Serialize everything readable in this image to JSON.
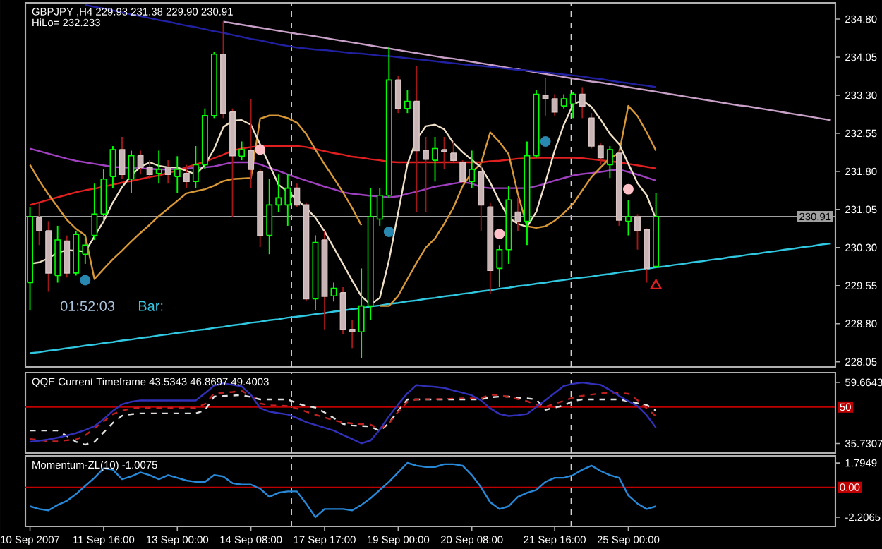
{
  "chart_data": [
    {
      "type": "candlestick",
      "title": "GBPJPY ,H4  229.93 231.38 229.90 230.91",
      "annotations": [
        "HiLo= 232.233",
        "01:52:03",
        "Bar:"
      ],
      "categories": [
        null,
        null,
        null,
        null,
        null,
        null,
        null,
        null,
        null,
        null,
        null,
        null,
        null,
        null,
        null,
        null,
        null,
        null,
        null,
        null,
        null,
        null,
        null,
        null,
        null,
        null,
        null,
        null,
        null,
        null,
        null,
        null,
        null,
        null,
        null,
        null,
        null,
        null,
        null,
        null,
        null,
        null,
        null,
        null,
        null,
        null,
        null,
        null,
        null,
        null,
        null,
        null,
        null,
        null,
        null,
        null,
        null,
        null,
        null,
        null,
        null,
        null,
        null,
        null,
        null,
        null,
        null,
        null,
        null,
        null,
        null,
        null,
        null,
        null,
        null,
        null,
        null,
        null,
        null,
        null,
        null,
        null,
        null,
        null,
        null,
        null,
        null,
        null
      ],
      "ohlc": [
        [
          229.61,
          231.1,
          229.06,
          230.91
        ],
        [
          230.89,
          231.19,
          230.35,
          230.63
        ],
        [
          230.63,
          230.82,
          229.43,
          229.8
        ],
        [
          229.75,
          230.73,
          229.61,
          230.45
        ],
        [
          230.43,
          230.54,
          229.71,
          229.8
        ],
        [
          229.8,
          230.63,
          229.75,
          230.56
        ],
        [
          230.17,
          230.54,
          229.98,
          230.35
        ],
        [
          230.54,
          231.56,
          230.45,
          230.96
        ],
        [
          230.96,
          231.84,
          230.82,
          231.65
        ],
        [
          231.7,
          232.3,
          231.47,
          232.23
        ],
        [
          232.23,
          232.48,
          231.65,
          231.74
        ],
        [
          231.65,
          232.21,
          231.37,
          232.11
        ],
        [
          232.11,
          232.21,
          231.74,
          231.88
        ],
        [
          231.88,
          232.02,
          231.65,
          231.74
        ],
        [
          231.76,
          232.21,
          231.56,
          231.84
        ],
        [
          231.88,
          232.02,
          231.56,
          231.74
        ],
        [
          231.7,
          232.1,
          231.37,
          231.84
        ],
        [
          231.76,
          231.93,
          231.47,
          231.6
        ],
        [
          231.6,
          232.3,
          231.47,
          231.93
        ],
        [
          231.93,
          233.04,
          231.84,
          232.9
        ],
        [
          232.9,
          234.15,
          232.85,
          234.11
        ],
        [
          234.11,
          234.75,
          232.85,
          232.95
        ],
        [
          232.97,
          233.04,
          230.91,
          232.11
        ],
        [
          232.1,
          232.39,
          232.02,
          232.23
        ],
        [
          232.21,
          233.23,
          231.47,
          231.84
        ],
        [
          231.79,
          231.84,
          230.31,
          230.54
        ],
        [
          230.54,
          231.65,
          230.17,
          231.14
        ],
        [
          231.14,
          231.74,
          231.0,
          231.28
        ],
        [
          231.14,
          231.74,
          230.73,
          231.47
        ],
        [
          231.47,
          231.56,
          231.1,
          231.14
        ],
        [
          231.14,
          231.19,
          229.24,
          229.29
        ],
        [
          229.29,
          230.54,
          229.06,
          230.4
        ],
        [
          230.45,
          230.63,
          228.69,
          229.34
        ],
        [
          229.35,
          229.61,
          229.24,
          229.5
        ],
        [
          229.41,
          229.52,
          228.6,
          228.69
        ],
        [
          228.69,
          228.87,
          228.32,
          228.64
        ],
        [
          228.64,
          229.89,
          228.13,
          229.15
        ],
        [
          229.15,
          231.47,
          228.87,
          230.91
        ],
        [
          230.86,
          231.47,
          230.73,
          231.33
        ],
        [
          231.33,
          234.24,
          231.28,
          233.6
        ],
        [
          233.6,
          233.69,
          232.95,
          233.04
        ],
        [
          233.04,
          233.41,
          232.95,
          233.18
        ],
        [
          233.18,
          233.87,
          231.0,
          232.21
        ],
        [
          232.21,
          232.48,
          231.0,
          232.04
        ],
        [
          232.02,
          232.48,
          231.6,
          232.25
        ],
        [
          232.23,
          232.48,
          231.84,
          232.19
        ],
        [
          232.16,
          232.39,
          231.98,
          232.02
        ],
        [
          231.98,
          232.02,
          231.56,
          231.6
        ],
        [
          231.6,
          232.21,
          231.47,
          231.84
        ],
        [
          231.79,
          231.98,
          230.63,
          231.14
        ],
        [
          231.1,
          231.19,
          229.38,
          229.85
        ],
        [
          229.89,
          230.35,
          229.52,
          230.26
        ],
        [
          230.26,
          231.51,
          229.98,
          231.24
        ],
        [
          231.0,
          231.28,
          230.63,
          230.82
        ],
        [
          230.82,
          232.39,
          230.35,
          232.11
        ],
        [
          232.11,
          233.41,
          232.07,
          233.32
        ],
        [
          233.3,
          233.64,
          232.9,
          233.23
        ],
        [
          233.23,
          233.32,
          232.9,
          232.97
        ],
        [
          233.09,
          233.32,
          233.04,
          233.23
        ],
        [
          233.13,
          233.36,
          232.85,
          233.32
        ],
        [
          233.32,
          233.46,
          232.85,
          233.09
        ],
        [
          232.85,
          232.95,
          232.25,
          232.3
        ],
        [
          232.3,
          232.35,
          231.93,
          232.07
        ],
        [
          231.93,
          232.3,
          231.67,
          232.23
        ],
        [
          232.16,
          232.21,
          230.73,
          230.84
        ],
        [
          230.82,
          231.24,
          230.54,
          230.91
        ],
        [
          230.91,
          230.96,
          230.26,
          230.63
        ],
        [
          230.65,
          230.68,
          229.61,
          229.89
        ],
        [
          229.93,
          231.38,
          229.9,
          230.91
        ],
        null,
        null,
        null,
        null,
        null,
        null,
        null,
        null,
        null,
        null,
        null,
        null,
        null,
        null,
        null,
        null,
        null,
        null,
        null
      ],
      "series": [
        {
          "type": "line",
          "color": "#30c8e0",
          "values": [
            228.22,
            228.24,
            228.27,
            228.29,
            228.32,
            228.34,
            228.37,
            228.39,
            228.42,
            228.44,
            228.47,
            228.49,
            228.52,
            228.54,
            228.57,
            228.59,
            228.62,
            228.64,
            228.67,
            228.69,
            228.72,
            228.74,
            228.77,
            228.79,
            228.82,
            228.84,
            228.87,
            228.89,
            228.92,
            228.94,
            228.96,
            228.99,
            229.01,
            229.04,
            229.06,
            229.09,
            229.11,
            229.14,
            229.16,
            229.19,
            229.21,
            229.24,
            229.26,
            229.29,
            229.31,
            229.34,
            229.36,
            229.39,
            229.41,
            229.44,
            229.46,
            229.49,
            229.51,
            229.54,
            229.56,
            229.59,
            229.61,
            229.64,
            229.66,
            229.69,
            229.71,
            229.73,
            229.76,
            229.78,
            229.81,
            229.83,
            229.86,
            229.88,
            229.91,
            229.93,
            229.96,
            229.98,
            230.01,
            230.03,
            230.06,
            230.08,
            230.11,
            230.13,
            230.16,
            230.18,
            230.21,
            230.23,
            230.26,
            230.28,
            230.31,
            230.33,
            230.36,
            230.38
          ]
        },
        {
          "type": "line",
          "color": "#c8a0c8",
          "values": [
            null,
            null,
            null,
            null,
            null,
            null,
            null,
            null,
            null,
            null,
            null,
            null,
            null,
            null,
            null,
            null,
            null,
            null,
            null,
            null,
            null,
            234.75,
            234.72,
            234.69,
            234.66,
            234.63,
            234.6,
            234.57,
            234.54,
            234.51,
            234.49,
            234.46,
            234.43,
            234.4,
            234.37,
            234.34,
            234.31,
            234.28,
            234.25,
            234.22,
            234.19,
            234.16,
            234.13,
            234.1,
            234.07,
            234.04,
            234.02,
            233.99,
            233.96,
            233.93,
            233.9,
            233.87,
            233.84,
            233.81,
            233.78,
            233.75,
            233.72,
            233.69,
            233.66,
            233.63,
            233.6,
            233.57,
            233.55,
            233.52,
            233.49,
            233.46,
            233.43,
            233.4,
            233.37,
            233.34,
            233.31,
            233.28,
            233.25,
            233.22,
            233.19,
            233.16,
            233.13,
            233.1,
            233.08,
            233.05,
            233.02,
            232.99,
            232.96,
            232.93,
            232.9,
            232.87,
            232.84,
            232.81
          ]
        },
        {
          "type": "line",
          "color": "#2020a0",
          "values": [
            null,
            null,
            null,
            null,
            null,
            null,
            235.08,
            235.04,
            235.01,
            234.97,
            234.93,
            234.89,
            234.86,
            234.82,
            234.78,
            234.75,
            234.71,
            234.67,
            234.64,
            234.6,
            234.56,
            234.53,
            234.49,
            234.45,
            234.41,
            234.38,
            234.34,
            234.3,
            234.27,
            234.24,
            234.22,
            234.2,
            234.19,
            234.17,
            234.15,
            234.13,
            234.12,
            234.1,
            234.08,
            234.07,
            234.05,
            234.03,
            234.01,
            233.99,
            233.97,
            233.95,
            233.93,
            233.91,
            233.89,
            233.88,
            233.86,
            233.84,
            233.82,
            233.8,
            233.79,
            233.77,
            233.75,
            233.73,
            233.71,
            233.69,
            233.67,
            233.64,
            233.62,
            233.59,
            233.56,
            233.54,
            233.51,
            233.49,
            233.46,
            null,
            null,
            null,
            null,
            null,
            null,
            null,
            null,
            null,
            null,
            null,
            null,
            null,
            null,
            null,
            null,
            null,
            null,
            null
          ]
        },
        {
          "type": "line",
          "color": "#a040c0",
          "values": [
            232.25,
            232.2,
            232.15,
            232.1,
            232.05,
            232.01,
            231.98,
            231.95,
            231.92,
            231.89,
            231.88,
            231.87,
            231.86,
            231.85,
            231.84,
            231.84,
            231.85,
            231.86,
            231.87,
            231.88,
            231.9,
            231.94,
            231.98,
            231.98,
            231.98,
            231.94,
            231.87,
            231.81,
            231.74,
            231.68,
            231.62,
            231.56,
            231.5,
            231.45,
            231.39,
            231.36,
            231.34,
            231.32,
            231.31,
            231.29,
            231.31,
            231.36,
            231.4,
            231.45,
            231.5,
            231.53,
            231.56,
            231.59,
            231.56,
            231.49,
            231.47,
            231.47,
            231.47,
            231.47,
            231.47,
            231.51,
            231.56,
            231.62,
            231.67,
            231.72,
            231.75,
            231.77,
            231.79,
            231.82,
            231.84,
            231.79,
            231.74,
            231.68,
            231.62,
            null,
            null,
            null,
            null,
            null,
            null,
            null,
            null,
            null,
            null,
            null,
            null,
            null,
            null,
            null,
            null,
            null,
            null,
            null
          ]
        },
        {
          "type": "line",
          "color": "#e02020",
          "values": [
            231.14,
            231.19,
            231.24,
            231.29,
            231.34,
            231.39,
            231.43,
            231.46,
            231.5,
            231.54,
            231.58,
            231.61,
            231.65,
            231.69,
            231.72,
            231.77,
            231.82,
            231.88,
            231.94,
            231.99,
            232.06,
            232.13,
            232.21,
            232.25,
            232.28,
            232.3,
            232.3,
            232.3,
            232.3,
            232.3,
            232.28,
            232.24,
            232.2,
            232.16,
            232.13,
            232.09,
            232.07,
            232.04,
            232.02,
            231.99,
            231.98,
            231.98,
            231.98,
            231.98,
            231.98,
            231.98,
            231.98,
            231.98,
            231.98,
            231.98,
            232.0,
            232.01,
            232.03,
            232.05,
            232.06,
            232.07,
            232.07,
            232.07,
            232.07,
            232.07,
            232.06,
            232.04,
            232.02,
            232.0,
            231.98,
            231.95,
            231.92,
            231.89,
            231.86,
            null,
            null,
            null,
            null,
            null,
            null,
            null,
            null,
            null,
            null,
            null,
            null,
            null,
            null,
            null,
            null,
            null,
            null,
            null
          ]
        },
        {
          "type": "line",
          "color": "#d89838",
          "values": [
            231.93,
            231.62,
            231.35,
            231.1,
            230.85,
            230.67,
            230.54,
            229.68,
            229.88,
            230.07,
            230.24,
            230.42,
            230.59,
            230.75,
            230.92,
            231.07,
            231.22,
            231.37,
            231.41,
            231.45,
            231.52,
            231.61,
            231.65,
            231.66,
            231.67,
            232.84,
            232.9,
            232.9,
            232.85,
            232.76,
            232.54,
            232.23,
            231.94,
            231.67,
            231.39,
            231.08,
            230.74,
            null,
            229.15,
            229.15,
            229.35,
            229.68,
            230.0,
            230.3,
            230.48,
            230.77,
            231.09,
            231.51,
            231.78,
            231.96,
            232.57,
            232.38,
            232.14,
            231.36,
            230.72,
            230.69,
            230.72,
            230.83,
            230.98,
            231.16,
            231.43,
            231.69,
            231.88,
            232.06,
            232.16,
            233.09,
            232.89,
            232.57,
            232.21,
            null,
            null,
            null,
            null,
            null,
            null,
            null,
            null,
            null,
            null,
            null,
            null,
            null,
            null,
            null,
            null,
            null,
            null,
            null
          ]
        },
        {
          "type": "line",
          "color": "#f0e0c8",
          "values": [
            229.98,
            230.01,
            230.09,
            230.2,
            230.25,
            230.24,
            230.22,
            230.52,
            230.82,
            231.19,
            231.49,
            231.72,
            231.89,
            231.98,
            231.91,
            231.88,
            231.88,
            231.81,
            231.74,
            231.93,
            232.24,
            232.67,
            232.8,
            232.81,
            232.72,
            232.33,
            231.93,
            231.54,
            231.4,
            231.25,
            231.08,
            230.89,
            230.62,
            230.3,
            229.98,
            229.65,
            229.34,
            229.18,
            229.31,
            230.05,
            230.99,
            231.94,
            232.43,
            232.69,
            232.72,
            232.63,
            232.36,
            232.18,
            232.03,
            231.88,
            231.58,
            231.21,
            230.89,
            230.77,
            230.71,
            231.0,
            231.59,
            232.21,
            232.72,
            233.12,
            233.2,
            233.07,
            232.82,
            232.54,
            232.34,
            231.95,
            231.57,
            231.33,
            230.86,
            null,
            null,
            null,
            null,
            null,
            null,
            null,
            null,
            null,
            null,
            null,
            null,
            null,
            null,
            null,
            null,
            null,
            null,
            null
          ]
        },
        {
          "type": "scatter",
          "marker": "circle",
          "color": "#2888b0",
          "values": [
            null,
            null,
            null,
            null,
            null,
            null,
            229.66,
            null,
            null,
            null,
            null,
            null,
            null,
            null,
            null,
            null,
            null,
            null,
            null,
            null,
            null,
            null,
            null,
            null,
            null,
            null,
            null,
            null,
            null,
            null,
            null,
            null,
            null,
            null,
            null,
            null,
            null,
            null,
            null,
            230.61,
            null,
            null,
            null,
            null,
            null,
            null,
            null,
            null,
            null,
            null,
            null,
            null,
            null,
            null,
            null,
            null,
            232.39,
            null,
            null,
            null,
            null,
            null,
            null,
            null,
            null,
            null,
            null,
            null,
            null,
            null,
            null,
            null,
            null,
            null,
            null,
            null,
            null,
            null,
            null,
            null,
            null,
            null,
            null,
            null,
            null,
            null,
            null,
            null
          ]
        },
        {
          "type": "scatter",
          "marker": "circle",
          "color": "#ffc0c8",
          "values": [
            null,
            null,
            null,
            null,
            null,
            null,
            null,
            null,
            null,
            null,
            null,
            null,
            null,
            null,
            null,
            null,
            null,
            null,
            null,
            null,
            null,
            null,
            null,
            null,
            null,
            232.23,
            null,
            null,
            null,
            null,
            null,
            null,
            null,
            null,
            null,
            null,
            null,
            null,
            null,
            null,
            null,
            null,
            null,
            null,
            null,
            null,
            null,
            null,
            null,
            null,
            null,
            230.57,
            null,
            null,
            null,
            null,
            null,
            null,
            null,
            null,
            null,
            null,
            null,
            null,
            null,
            231.45,
            null,
            null,
            null,
            null,
            null,
            null,
            null,
            null,
            null,
            null,
            null,
            null,
            null,
            null,
            null,
            null,
            null,
            null,
            null,
            null,
            null,
            null
          ]
        },
        {
          "type": "scatter",
          "marker": "triangle",
          "color": "#e02020",
          "values": [
            null,
            null,
            null,
            null,
            null,
            null,
            null,
            null,
            null,
            null,
            null,
            null,
            null,
            null,
            null,
            null,
            null,
            null,
            null,
            null,
            null,
            null,
            null,
            null,
            null,
            null,
            null,
            null,
            null,
            null,
            null,
            null,
            null,
            null,
            null,
            null,
            null,
            null,
            null,
            null,
            null,
            null,
            null,
            null,
            null,
            null,
            null,
            null,
            null,
            null,
            null,
            null,
            null,
            null,
            null,
            null,
            null,
            null,
            null,
            null,
            null,
            null,
            null,
            null,
            null,
            null,
            null,
            null,
            229.55,
            null,
            null,
            null,
            null,
            null,
            null,
            null,
            null,
            null,
            null,
            null,
            null,
            null,
            null,
            null,
            null,
            null,
            null,
            null
          ]
        }
      ],
      "ylim": [
        227.95,
        235.12
      ],
      "yticks": [
        {
          "value": 228.05,
          "label": "228.05"
        },
        {
          "value": 228.8,
          "label": "228.80"
        },
        {
          "value": 229.55,
          "label": "229.55"
        },
        {
          "value": 230.3,
          "label": "230.30"
        },
        {
          "value": 231.05,
          "label": "231.05"
        },
        {
          "value": 231.8,
          "label": "231.80"
        },
        {
          "value": 232.55,
          "label": "232.55"
        },
        {
          "value": 233.3,
          "label": "233.30"
        },
        {
          "value": 234.05,
          "label": "234.05"
        },
        {
          "value": 234.8,
          "label": "234.80"
        }
      ],
      "ref_lines": [
        {
          "axis": "y",
          "value": 230.91,
          "label": "230.91",
          "color": "#a0a0a0"
        }
      ],
      "tick_labels": "y"
    },
    {
      "type": "line",
      "title": "QQE Current Timeframe 43.5343 46.8697 49.4003",
      "categories": [
        null,
        null,
        null,
        null,
        null,
        null,
        null,
        null,
        null,
        null,
        null,
        null,
        null,
        null,
        null,
        null,
        null,
        null,
        null,
        null,
        null,
        null,
        null,
        null,
        null,
        null,
        null,
        null,
        null,
        null,
        null,
        null,
        null,
        null,
        null,
        null,
        null,
        null,
        null,
        null,
        null,
        null,
        null,
        null,
        null,
        null,
        null,
        null,
        null,
        null,
        null,
        null,
        null,
        null,
        null,
        null,
        null,
        null,
        null,
        null,
        null,
        null,
        null,
        null,
        null,
        null,
        null,
        null,
        null,
        null,
        null,
        null,
        null,
        null,
        null,
        null,
        null,
        null,
        null,
        null,
        null,
        null,
        null,
        null,
        null,
        null,
        null,
        null
      ],
      "series": [
        {
          "color": "#e0e0e0",
          "line_style": "dashed",
          "values": [
            40.8,
            40.8,
            40.8,
            40.8,
            38.7,
            36.4,
            35.3,
            36.4,
            40.1,
            43.8,
            46.6,
            47.2,
            47.5,
            47.5,
            47.5,
            47.5,
            47.5,
            47.5,
            47.5,
            48.7,
            54.1,
            54.3,
            54.5,
            54.7,
            53.9,
            53.0,
            53.0,
            53.0,
            53.0,
            51.5,
            50.4,
            49.8,
            47.9,
            45.7,
            43.4,
            42.8,
            42.6,
            42.4,
            40.6,
            43.7,
            48.6,
            53.0,
            53.0,
            53.0,
            53.0,
            53.0,
            53.0,
            53.0,
            53.0,
            53.0,
            53.8,
            54.1,
            54.1,
            53.7,
            53.4,
            53.0,
            48.9,
            49.8,
            50.6,
            52.4,
            53.0,
            53.0,
            53.0,
            53.0,
            53.0,
            52.3,
            51.5,
            50.8,
            48.6,
            null,
            null,
            null,
            null,
            null,
            null,
            null,
            null,
            null,
            null,
            null,
            null,
            null,
            null,
            null,
            null,
            null,
            null,
            null
          ]
        },
        {
          "color": "#c02020",
          "line_style": "dashed",
          "values": [
            37.5,
            37.1,
            36.6,
            36.6,
            37.0,
            37.3,
            38.9,
            41.7,
            44.4,
            47.2,
            48.5,
            49.5,
            49.7,
            49.7,
            49.7,
            49.7,
            49.7,
            49.7,
            49.7,
            51.2,
            55.3,
            55.6,
            55.9,
            56.3,
            54.5,
            51.4,
            50.7,
            50.6,
            50.4,
            49.4,
            48.2,
            47.0,
            45.9,
            44.8,
            44.0,
            43.6,
            43.3,
            43.1,
            41.5,
            43.6,
            48.2,
            52.1,
            53.0,
            53.1,
            53.1,
            53.2,
            53.3,
            53.4,
            53.4,
            53.5,
            54.8,
            54.7,
            53.9,
            53.1,
            52.3,
            51.0,
            50.1,
            51.3,
            52.5,
            53.7,
            54.4,
            54.9,
            55.3,
            55.7,
            55.5,
            55.2,
            52.7,
            49.5,
            46.4,
            null,
            null,
            null,
            null,
            null,
            null,
            null,
            null,
            null,
            null,
            null,
            null,
            null,
            null,
            null,
            null,
            null,
            null,
            null
          ]
        },
        {
          "color": "#3030b8",
          "line_style": "solid",
          "values": [
            36.4,
            36.8,
            37.3,
            38.0,
            38.9,
            39.8,
            41.0,
            42.5,
            45.3,
            48.5,
            51.1,
            52.1,
            52.6,
            52.6,
            52.6,
            52.6,
            52.6,
            52.6,
            52.6,
            55.4,
            58.4,
            59.3,
            58.7,
            58.1,
            54.8,
            49.6,
            48.2,
            47.6,
            47.1,
            45.7,
            44.1,
            43.0,
            41.9,
            40.8,
            39.1,
            37.5,
            35.8,
            36.9,
            41.2,
            46.4,
            51.1,
            55.4,
            58.6,
            58.2,
            57.9,
            57.5,
            56.5,
            55.6,
            54.6,
            52.6,
            49.5,
            47.3,
            46.5,
            46.8,
            47.3,
            50.0,
            52.7,
            55.5,
            58.3,
            59.1,
            59.6,
            59.1,
            58.7,
            56.7,
            54.4,
            52.3,
            50.4,
            46.8,
            41.9,
            null,
            null,
            null,
            null,
            null,
            null,
            null,
            null,
            null,
            null,
            null,
            null,
            null,
            null,
            null,
            null,
            null,
            null,
            null
          ]
        }
      ],
      "ylim": [
        32.0,
        63.5
      ],
      "yticks": [
        59.6643,
        35.7307
      ],
      "ref_lines": [
        {
          "axis": "y",
          "value": 50,
          "label": "50",
          "color": "#c00000"
        }
      ],
      "tick_labels": "y"
    },
    {
      "type": "line",
      "title": "Momentum-ZL(10) -1.0075",
      "categories": [
        "10 Sep 2007",
        null,
        null,
        null,
        null,
        null,
        null,
        null,
        "11 Sep 16:00",
        null,
        null,
        null,
        null,
        null,
        null,
        null,
        "13 Sep 00:00",
        null,
        null,
        null,
        null,
        null,
        null,
        null,
        "14 Sep 08:00",
        null,
        null,
        null,
        null,
        null,
        null,
        null,
        "17 Sep 17:00",
        null,
        null,
        null,
        null,
        null,
        null,
        null,
        "19 Sep 00:00",
        null,
        null,
        null,
        null,
        null,
        null,
        null,
        "20 Sep 08:00",
        null,
        null,
        null,
        null,
        null,
        null,
        null,
        null,
        "21 Sep 16:00",
        null,
        null,
        null,
        null,
        null,
        null,
        null,
        "25 Sep 00:00",
        null,
        null,
        null,
        null,
        null,
        null,
        null,
        null,
        null,
        null,
        null,
        null,
        null,
        null,
        null,
        null,
        null,
        null,
        null,
        null,
        null,
        null
      ],
      "series": [
        {
          "color": "#2888d8",
          "line_style": "solid",
          "values": [
            -1.4,
            -1.6,
            -1.7,
            -1.3,
            -1.0,
            -0.5,
            0.1,
            0.7,
            1.4,
            1.3,
            0.6,
            0.8,
            1.1,
            0.9,
            0.6,
            0.9,
            0.7,
            0.5,
            0.4,
            0.4,
            0.9,
            0.8,
            0.3,
            0.2,
            0.2,
            -0.1,
            -0.7,
            -0.4,
            -0.3,
            -0.3,
            -1.2,
            -2.2,
            -1.6,
            -1.6,
            -1.6,
            -1.7,
            -1.3,
            -0.8,
            -0.2,
            0.4,
            1.1,
            1.8,
            1.6,
            1.5,
            1.5,
            1.7,
            1.7,
            1.6,
            0.9,
            0.0,
            -1.1,
            -1.6,
            -1.4,
            -0.7,
            -0.4,
            -0.2,
            0.4,
            0.7,
            0.7,
            0.9,
            1.3,
            1.6,
            1.2,
            0.9,
            0.7,
            -0.6,
            -1.2,
            -1.6,
            -1.4,
            null,
            null,
            null,
            null,
            null,
            null,
            null,
            null,
            null,
            null,
            null,
            null,
            null,
            null,
            null,
            null,
            null,
            null,
            null
          ]
        }
      ],
      "ylim": [
        -2.88,
        2.32
      ],
      "yticks": [
        1.7949,
        -2.2065
      ],
      "ref_lines": [
        {
          "axis": "y",
          "value": 0,
          "label": "0.00",
          "color": "#c00000"
        }
      ]
    }
  ]
}
